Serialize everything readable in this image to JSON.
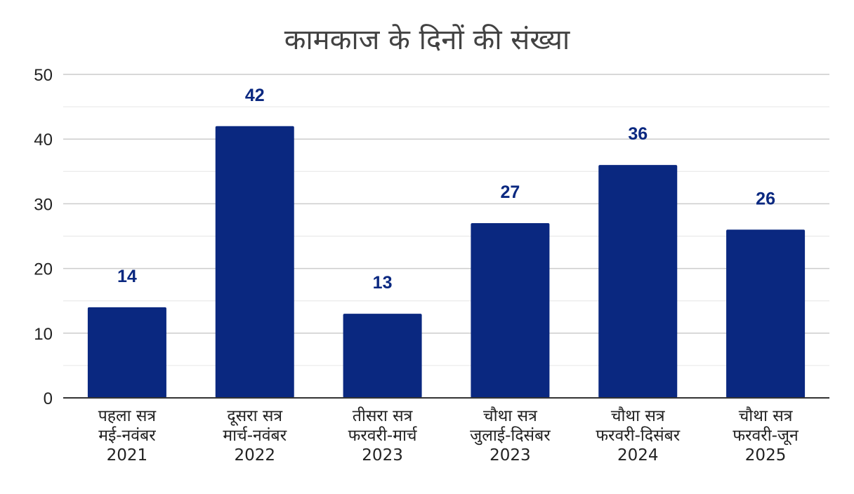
{
  "colors": {
    "bar": "#0a2880",
    "data_label": "#0a2880",
    "gridline": "#cccccc",
    "minor_gridline": "#e6e6e6",
    "axis": "#333333"
  },
  "chart_data": {
    "type": "bar",
    "title": "कामकाज के दिनों की संख्या",
    "xlabel": "",
    "ylabel": "",
    "ylim": [
      0,
      50
    ],
    "y_ticks": [
      0,
      10,
      20,
      30,
      40,
      50
    ],
    "y_minor_ticks": [
      5,
      15,
      25,
      35,
      45
    ],
    "grid": true,
    "legend": "none",
    "categories": [
      [
        "पहला सत्र",
        "मई-नवंबर",
        "2021"
      ],
      [
        "दूसरा सत्र",
        "मार्च-नवंबर",
        "2022"
      ],
      [
        "तीसरा सत्र",
        "फरवरी-मार्च",
        "2023"
      ],
      [
        "चौथा सत्र",
        "जुलाई-दिसंबर",
        "2023"
      ],
      [
        "चौथा सत्र",
        "फरवरी-दिसंबर",
        "2024"
      ],
      [
        "चौथा सत्र",
        "फरवरी-जून",
        "2025"
      ]
    ],
    "values": [
      14,
      42,
      13,
      27,
      36,
      26
    ]
  }
}
